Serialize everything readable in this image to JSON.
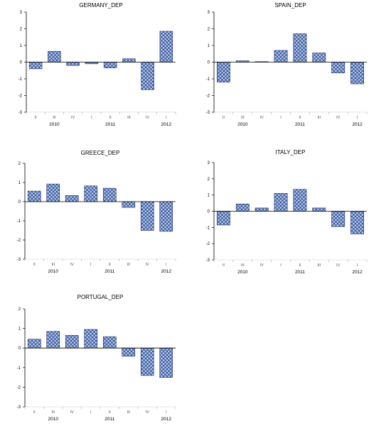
{
  "chart_data": [
    {
      "type": "bar",
      "title": "GERMANY_DEP",
      "categories": [
        "II",
        "III",
        "IV",
        "I",
        "II",
        "III",
        "IV",
        "I"
      ],
      "years": [
        {
          "label": "2010",
          "after_index": 1.5
        },
        {
          "label": "2011",
          "after_index": 4.5
        },
        {
          "label": "2012",
          "after_index": 7
        }
      ],
      "values": [
        -0.4,
        0.65,
        -0.2,
        -0.1,
        -0.35,
        0.2,
        -1.65,
        1.85
      ],
      "ylim": [
        -3,
        3
      ],
      "yticks": [
        3,
        2,
        1,
        0,
        -1,
        -2,
        -3
      ],
      "grid": false
    },
    {
      "type": "bar",
      "title": "SPAIN_DEP",
      "categories": [
        "II",
        "III",
        "IV",
        "I",
        "II",
        "III",
        "IV",
        "I"
      ],
      "years": [
        {
          "label": "2010",
          "after_index": 1.5
        },
        {
          "label": "2011",
          "after_index": 4.5
        },
        {
          "label": "2012",
          "after_index": 7
        }
      ],
      "values": [
        -1.2,
        0.08,
        0.03,
        0.7,
        1.7,
        0.55,
        -0.65,
        -1.3
      ],
      "ylim": [
        -3,
        3
      ],
      "yticks": [
        3,
        2,
        1,
        0,
        -1,
        -2,
        -3
      ],
      "grid": false
    },
    {
      "type": "bar",
      "title": "GREECE_DEP",
      "categories": [
        "II",
        "III",
        "IV",
        "I",
        "II",
        "III",
        "IV",
        "I"
      ],
      "years": [
        {
          "label": "2010",
          "after_index": 1.5
        },
        {
          "label": "2011",
          "after_index": 4.5
        },
        {
          "label": "2012",
          "after_index": 7
        }
      ],
      "values": [
        0.55,
        0.92,
        0.32,
        0.82,
        0.7,
        -0.3,
        -1.5,
        -1.55
      ],
      "ylim": [
        -3,
        2
      ],
      "yticks": [
        2,
        1,
        0,
        -1,
        -2,
        -3
      ],
      "grid": false
    },
    {
      "type": "bar",
      "title": "ITALY_DEP",
      "categories": [
        "II",
        "III",
        "IV",
        "I",
        "II",
        "III",
        "IV",
        "I"
      ],
      "years": [
        {
          "label": "2010",
          "after_index": 1.5
        },
        {
          "label": "2011",
          "after_index": 4.5
        },
        {
          "label": "2012",
          "after_index": 7
        }
      ],
      "values": [
        -0.85,
        0.45,
        0.2,
        1.1,
        1.35,
        0.2,
        -0.95,
        -1.4
      ],
      "ylim": [
        -3,
        3
      ],
      "yticks": [
        3,
        2,
        1,
        0,
        -1,
        -2,
        -3
      ],
      "grid": false
    },
    {
      "type": "bar",
      "title": "PORTUGAL_DEP",
      "categories": [
        "II",
        "III",
        "IV",
        "I",
        "II",
        "III",
        "IV",
        "I"
      ],
      "years": [
        {
          "label": "2010",
          "after_index": 1.5
        },
        {
          "label": "2011",
          "after_index": 4.5
        },
        {
          "label": "2012",
          "after_index": 7
        }
      ],
      "values": [
        0.45,
        0.85,
        0.65,
        0.95,
        0.58,
        -0.42,
        -1.4,
        -1.5
      ],
      "ylim": [
        -3,
        2
      ],
      "yticks": [
        2,
        1,
        0,
        -1,
        -2,
        -3
      ],
      "grid": false
    }
  ],
  "colors": {
    "bar_fill": "#a9c6f0",
    "bar_hatch": "#1f2f6e",
    "axis": "#000000"
  }
}
